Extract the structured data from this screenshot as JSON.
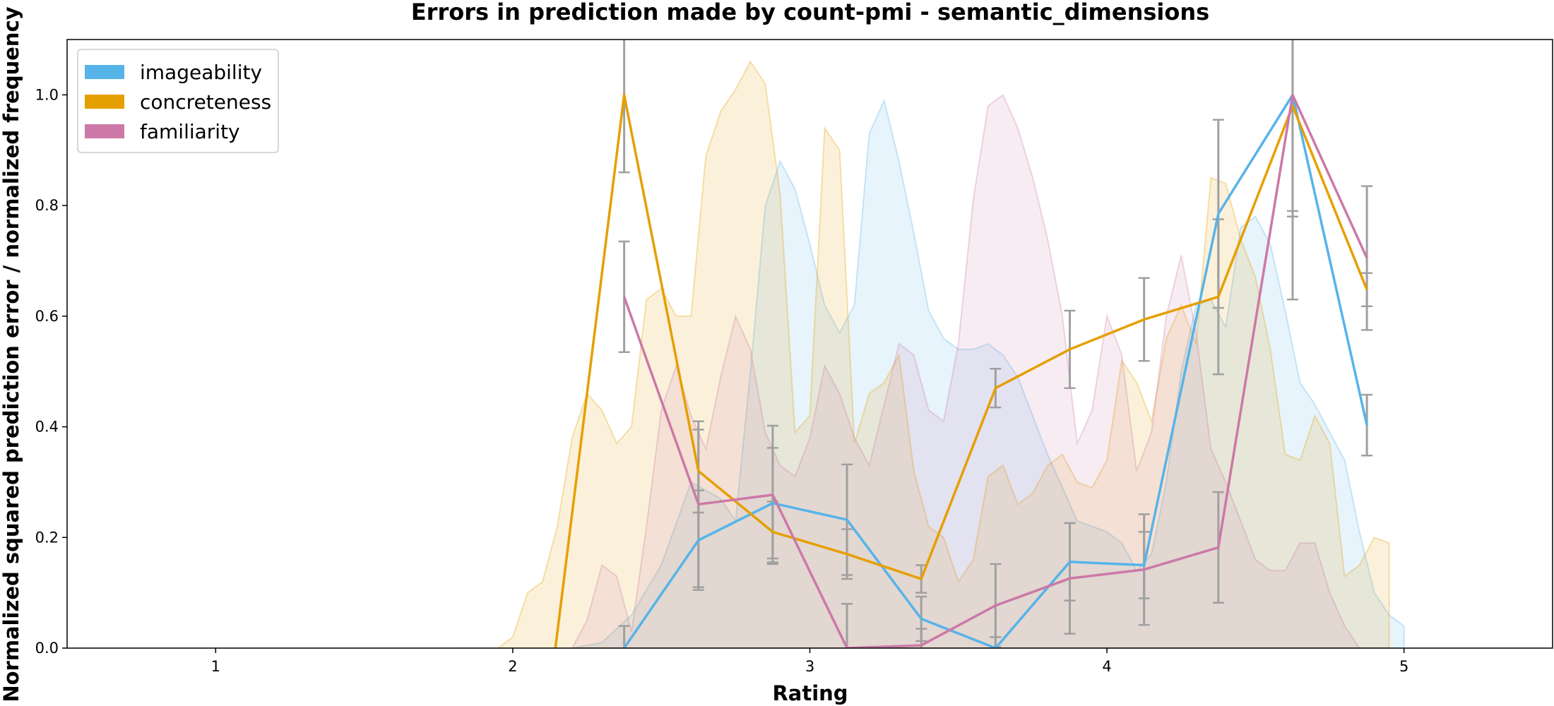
{
  "chart_data": {
    "type": "line",
    "title": "Errors in prediction made by count-pmi - semantic_dimensions",
    "xlabel": "Rating",
    "ylabel": "Normalized squared prediction error / normalized frequency",
    "xlim": [
      0.5,
      5.5
    ],
    "ylim": [
      0,
      1.1
    ],
    "xticks": [
      "1",
      "2",
      "3",
      "4",
      "5"
    ],
    "yticks": [
      "0.0",
      "0.2",
      "0.4",
      "0.6",
      "0.8",
      "1.0"
    ],
    "grid": false,
    "legend_position": "top-left",
    "series": [
      {
        "name": "imageability",
        "color": "#56B4E9",
        "x": [
          2.125,
          2.375,
          2.625,
          2.875,
          3.125,
          3.375,
          3.625,
          3.875,
          4.125,
          4.375,
          4.625,
          4.875
        ],
        "values": [
          null,
          0.0,
          0.195,
          0.262,
          0.232,
          0.053,
          0.0,
          0.156,
          0.15,
          0.785,
          1.0,
          0.403
        ],
        "error": [
          null,
          0.04,
          0.09,
          0.1,
          0.1,
          0.04,
          0.02,
          0.07,
          0.06,
          0.17,
          0.21,
          0.055
        ],
        "frequency": {
          "x": [
            2.2,
            2.3,
            2.4,
            2.5,
            2.6,
            2.7,
            2.75,
            2.8,
            2.85,
            2.9,
            2.95,
            3.0,
            3.05,
            3.1,
            3.15,
            3.2,
            3.25,
            3.3,
            3.35,
            3.4,
            3.45,
            3.5,
            3.55,
            3.6,
            3.65,
            3.7,
            3.8,
            3.9,
            4.0,
            4.05,
            4.1,
            4.15,
            4.2,
            4.25,
            4.3,
            4.35,
            4.4,
            4.45,
            4.5,
            4.55,
            4.6,
            4.65,
            4.7,
            4.75,
            4.8,
            4.85,
            4.9,
            4.95,
            5.0
          ],
          "values": [
            0.0,
            0.01,
            0.06,
            0.15,
            0.3,
            0.27,
            0.23,
            0.5,
            0.8,
            0.88,
            0.83,
            0.73,
            0.62,
            0.57,
            0.62,
            0.93,
            0.99,
            0.88,
            0.75,
            0.61,
            0.56,
            0.54,
            0.54,
            0.55,
            0.53,
            0.49,
            0.35,
            0.23,
            0.21,
            0.19,
            0.14,
            0.17,
            0.3,
            0.5,
            0.62,
            0.63,
            0.58,
            0.76,
            0.78,
            0.73,
            0.61,
            0.48,
            0.44,
            0.39,
            0.34,
            0.21,
            0.1,
            0.06,
            0.04
          ]
        }
      },
      {
        "name": "concreteness",
        "color": "#E69F00",
        "x": [
          2.125,
          2.375,
          2.625,
          2.875,
          3.125,
          3.375,
          3.625,
          3.875,
          4.125,
          4.375,
          4.625,
          4.875
        ],
        "values": [
          -0.08,
          1.0,
          0.32,
          0.21,
          0.17,
          0.125,
          0.47,
          0.54,
          0.594,
          0.635,
          0.98,
          0.648
        ],
        "error": [
          0.02,
          0.14,
          0.075,
          0.055,
          0.045,
          0.025,
          0.035,
          0.07,
          0.075,
          0.14,
          0.2,
          0.03
        ],
        "frequency": {
          "x": [
            1.8,
            1.85,
            1.9,
            1.95,
            2.0,
            2.05,
            2.1,
            2.15,
            2.2,
            2.25,
            2.3,
            2.35,
            2.4,
            2.45,
            2.5,
            2.55,
            2.6,
            2.65,
            2.7,
            2.75,
            2.8,
            2.85,
            2.9,
            2.95,
            3.0,
            3.05,
            3.1,
            3.15,
            3.2,
            3.25,
            3.3,
            3.35,
            3.4,
            3.45,
            3.5,
            3.55,
            3.6,
            3.65,
            3.7,
            3.75,
            3.8,
            3.85,
            3.9,
            3.95,
            4.0,
            4.05,
            4.1,
            4.15,
            4.2,
            4.25,
            4.3,
            4.35,
            4.4,
            4.45,
            4.5,
            4.55,
            4.6,
            4.65,
            4.7,
            4.75,
            4.8,
            4.85,
            4.9,
            4.95
          ],
          "values": [
            0.0,
            0.0,
            0.0,
            0.0,
            0.02,
            0.1,
            0.12,
            0.22,
            0.38,
            0.46,
            0.43,
            0.37,
            0.4,
            0.63,
            0.65,
            0.6,
            0.6,
            0.89,
            0.97,
            1.01,
            1.06,
            1.02,
            0.82,
            0.39,
            0.42,
            0.94,
            0.9,
            0.37,
            0.46,
            0.48,
            0.53,
            0.32,
            0.22,
            0.2,
            0.12,
            0.16,
            0.31,
            0.33,
            0.26,
            0.28,
            0.33,
            0.35,
            0.3,
            0.29,
            0.34,
            0.52,
            0.48,
            0.41,
            0.56,
            0.62,
            0.55,
            0.85,
            0.84,
            0.74,
            0.67,
            0.54,
            0.35,
            0.34,
            0.42,
            0.37,
            0.13,
            0.15,
            0.2,
            0.19
          ]
        }
      },
      {
        "name": "familiarity",
        "color": "#CC79A7",
        "x": [
          2.375,
          2.625,
          2.875,
          3.125,
          3.375,
          3.625,
          3.875,
          4.125,
          4.375,
          4.625,
          4.875
        ],
        "values": [
          0.635,
          0.26,
          0.277,
          0.0,
          0.005,
          0.077,
          0.126,
          0.142,
          0.182,
          1.0,
          0.705
        ],
        "error": [
          0.1,
          0.15,
          0.125,
          0.08,
          0.03,
          0.075,
          0.1,
          0.1,
          0.1,
          0.37,
          0.13
        ],
        "frequency": {
          "x": [
            2.2,
            2.25,
            2.3,
            2.35,
            2.4,
            2.45,
            2.5,
            2.55,
            2.6,
            2.65,
            2.7,
            2.75,
            2.8,
            2.85,
            2.9,
            2.95,
            3.0,
            3.05,
            3.1,
            3.15,
            3.2,
            3.25,
            3.3,
            3.35,
            3.4,
            3.45,
            3.5,
            3.55,
            3.6,
            3.65,
            3.7,
            3.75,
            3.8,
            3.85,
            3.9,
            3.95,
            4.0,
            4.05,
            4.1,
            4.15,
            4.2,
            4.25,
            4.3,
            4.35,
            4.4,
            4.45,
            4.5,
            4.55,
            4.6,
            4.65,
            4.7,
            4.75,
            4.8,
            4.85,
            4.9,
            4.95
          ],
          "values": [
            0.0,
            0.05,
            0.15,
            0.13,
            0.03,
            0.22,
            0.43,
            0.51,
            0.42,
            0.36,
            0.49,
            0.6,
            0.54,
            0.39,
            0.33,
            0.31,
            0.38,
            0.51,
            0.46,
            0.38,
            0.33,
            0.44,
            0.55,
            0.53,
            0.43,
            0.41,
            0.55,
            0.81,
            0.98,
            1.0,
            0.94,
            0.85,
            0.74,
            0.6,
            0.37,
            0.43,
            0.6,
            0.53,
            0.32,
            0.39,
            0.6,
            0.71,
            0.57,
            0.36,
            0.3,
            0.23,
            0.16,
            0.14,
            0.14,
            0.19,
            0.19,
            0.1,
            0.04,
            0.0,
            0.0,
            0.0
          ]
        }
      }
    ]
  }
}
